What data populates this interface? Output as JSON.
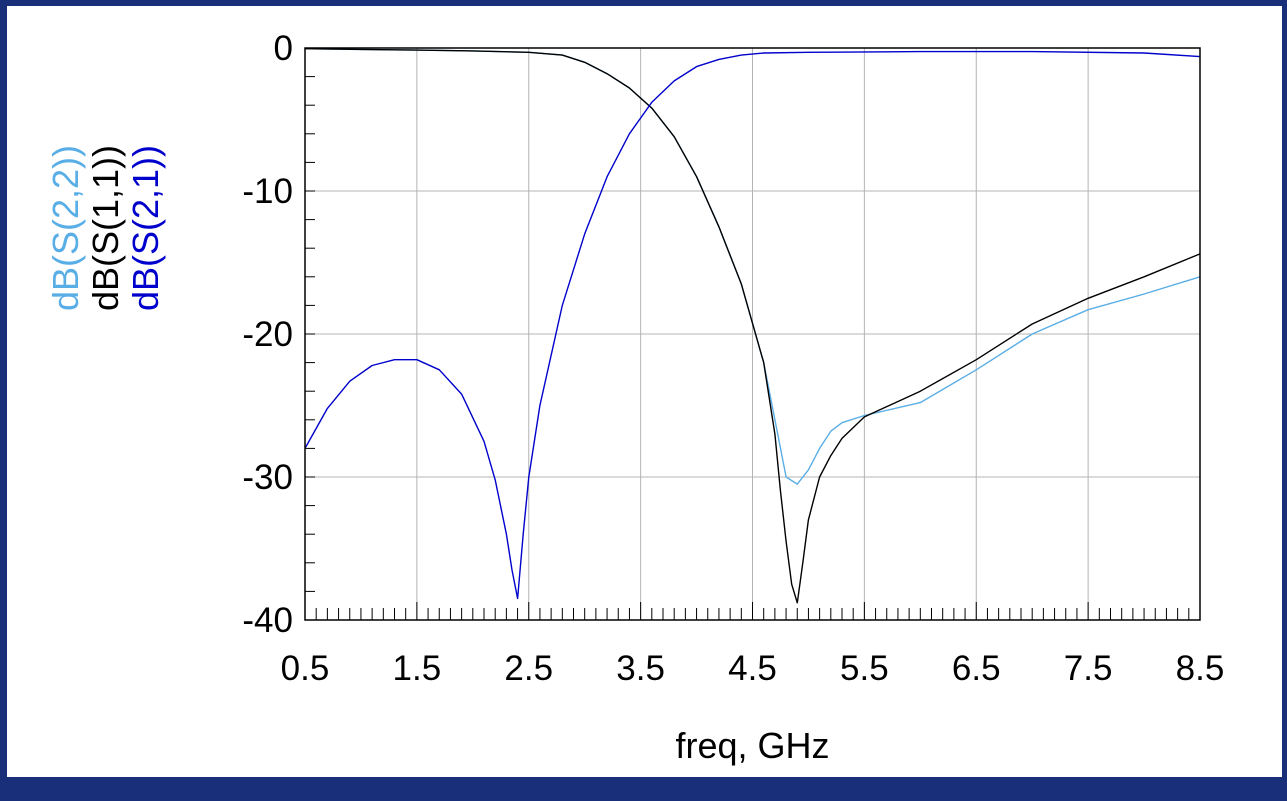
{
  "chart_data": {
    "type": "line",
    "title": "",
    "xlabel": "freq, GHz",
    "ylabel": "",
    "xlim": [
      0.5,
      8.5
    ],
    "ylim": [
      -40,
      0
    ],
    "x_ticks": [
      0.5,
      1.5,
      2.5,
      3.5,
      4.5,
      5.5,
      6.5,
      7.5,
      8.5
    ],
    "y_ticks": [
      0,
      -10,
      -20,
      -30,
      -40
    ],
    "x_tick_labels": [
      "0.5",
      "1.5",
      "2.5",
      "3.5",
      "4.5",
      "5.5",
      "6.5",
      "7.5",
      "8.5"
    ],
    "y_tick_labels": [
      "0",
      "-10",
      "-20",
      "-30",
      "-40"
    ],
    "x_minor_step": 0.1,
    "grid": true,
    "legend_position": "left",
    "series": [
      {
        "name": "dB(S(2,2))",
        "color": "#5aaee6",
        "x": [
          0.5,
          1.0,
          1.5,
          2.0,
          2.5,
          2.8,
          3.0,
          3.2,
          3.4,
          3.6,
          3.8,
          4.0,
          4.2,
          4.4,
          4.6,
          4.7,
          4.8,
          4.9,
          5.0,
          5.1,
          5.2,
          5.3,
          5.5,
          6.0,
          6.5,
          7.0,
          7.5,
          8.0,
          8.5
        ],
        "y": [
          -0.05,
          -0.1,
          -0.15,
          -0.2,
          -0.3,
          -0.5,
          -1.0,
          -1.8,
          -2.8,
          -4.2,
          -6.2,
          -9.0,
          -12.5,
          -16.5,
          -22.0,
          -26.0,
          -30.0,
          -30.5,
          -29.5,
          -28.0,
          -26.8,
          -26.2,
          -25.7,
          -24.8,
          -22.5,
          -20.0,
          -18.3,
          -17.2,
          -16.0
        ]
      },
      {
        "name": "dB(S(1,1))",
        "color": "#000000",
        "x": [
          0.5,
          1.0,
          1.5,
          2.0,
          2.5,
          2.8,
          3.0,
          3.2,
          3.4,
          3.6,
          3.8,
          4.0,
          4.2,
          4.4,
          4.6,
          4.7,
          4.75,
          4.8,
          4.85,
          4.9,
          4.95,
          5.0,
          5.1,
          5.2,
          5.3,
          5.5,
          6.0,
          6.5,
          7.0,
          7.5,
          8.0,
          8.5
        ],
        "y": [
          -0.05,
          -0.1,
          -0.15,
          -0.2,
          -0.3,
          -0.5,
          -1.0,
          -1.8,
          -2.8,
          -4.2,
          -6.2,
          -9.0,
          -12.5,
          -16.5,
          -22.0,
          -27.0,
          -31.0,
          -34.5,
          -37.5,
          -38.8,
          -36.0,
          -33.0,
          -30.0,
          -28.5,
          -27.3,
          -25.8,
          -24.0,
          -21.8,
          -19.3,
          -17.5,
          -16.0,
          -14.4
        ]
      },
      {
        "name": "dB(S(2,1))",
        "color": "#0000cc",
        "x": [
          0.5,
          0.7,
          0.9,
          1.1,
          1.3,
          1.5,
          1.7,
          1.9,
          2.1,
          2.2,
          2.3,
          2.35,
          2.4,
          2.45,
          2.5,
          2.6,
          2.8,
          3.0,
          3.2,
          3.4,
          3.6,
          3.8,
          4.0,
          4.2,
          4.4,
          4.6,
          5.0,
          6.0,
          7.0,
          8.0,
          8.5
        ],
        "y": [
          -28.0,
          -25.2,
          -23.3,
          -22.2,
          -21.8,
          -21.8,
          -22.5,
          -24.2,
          -27.5,
          -30.2,
          -34.0,
          -36.5,
          -38.5,
          -34.0,
          -30.0,
          -25.0,
          -18.0,
          -13.0,
          -9.0,
          -6.0,
          -3.8,
          -2.3,
          -1.3,
          -0.8,
          -0.5,
          -0.35,
          -0.3,
          -0.25,
          -0.25,
          -0.35,
          -0.6
        ]
      }
    ]
  }
}
